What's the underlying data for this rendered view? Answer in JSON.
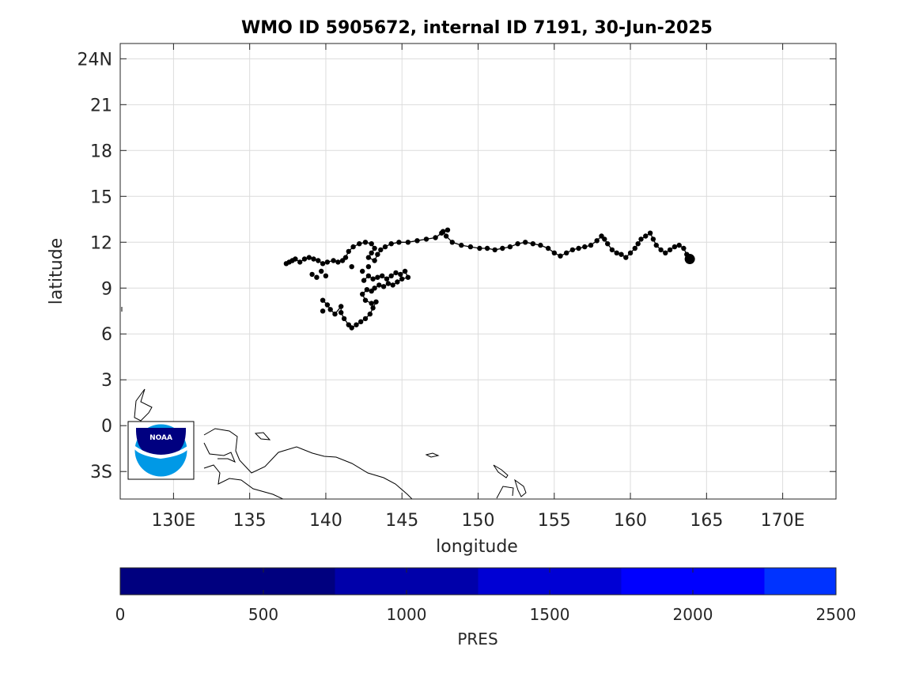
{
  "title": "WMO ID 5905672, internal ID 7191, 30-Jun-2025",
  "map": {
    "xlabel": "longitude",
    "ylabel": "latitude",
    "lon_range": [
      126.5,
      173.5
    ],
    "lat_range": [
      -4.8,
      25
    ],
    "lon_ticks": [
      {
        "value": 130,
        "label": "130E"
      },
      {
        "value": 135,
        "label": "135"
      },
      {
        "value": 140,
        "label": "140"
      },
      {
        "value": 145,
        "label": "145"
      },
      {
        "value": 150,
        "label": "150"
      },
      {
        "value": 155,
        "label": "155"
      },
      {
        "value": 160,
        "label": "160"
      },
      {
        "value": 165,
        "label": "165"
      },
      {
        "value": 170,
        "label": "170E"
      }
    ],
    "lat_ticks": [
      {
        "value": -3,
        "label": "3S"
      },
      {
        "value": 0,
        "label": "0"
      },
      {
        "value": 3,
        "label": "3"
      },
      {
        "value": 6,
        "label": "6"
      },
      {
        "value": 9,
        "label": "9"
      },
      {
        "value": 12,
        "label": "12"
      },
      {
        "value": 15,
        "label": "15"
      },
      {
        "value": 18,
        "label": "18"
      },
      {
        "value": 21,
        "label": "21"
      },
      {
        "value": 24,
        "label": "24N"
      }
    ],
    "grid": true,
    "logo": "noaa-logo",
    "colors": {
      "track": "#000000",
      "grid": "#dcdcdc",
      "coast": "#000000"
    }
  },
  "chart_data": {
    "type": "scatter",
    "track": [
      [
        137.4,
        10.6
      ],
      [
        137.6,
        10.7
      ],
      [
        137.8,
        10.8
      ],
      [
        138.0,
        10.9
      ],
      [
        138.3,
        10.7
      ],
      [
        138.6,
        10.9
      ],
      [
        138.9,
        11.0
      ],
      [
        139.2,
        10.9
      ],
      [
        139.5,
        10.8
      ],
      [
        139.8,
        10.6
      ],
      [
        140.1,
        10.7
      ],
      [
        140.5,
        10.8
      ],
      [
        140.8,
        10.7
      ],
      [
        141.1,
        10.8
      ],
      [
        141.3,
        11.0
      ],
      [
        141.5,
        11.4
      ],
      [
        141.8,
        11.7
      ],
      [
        142.2,
        11.9
      ],
      [
        142.6,
        12.0
      ],
      [
        143.0,
        11.9
      ],
      [
        143.2,
        11.6
      ],
      [
        143.0,
        11.3
      ],
      [
        142.8,
        11.0
      ],
      [
        143.2,
        10.8
      ],
      [
        143.4,
        11.2
      ],
      [
        143.6,
        11.5
      ],
      [
        143.9,
        11.7
      ],
      [
        144.3,
        11.9
      ],
      [
        144.8,
        12.0
      ],
      [
        145.4,
        12.0
      ],
      [
        146.0,
        12.1
      ],
      [
        146.6,
        12.2
      ],
      [
        147.2,
        12.3
      ],
      [
        147.6,
        12.6
      ],
      [
        148.0,
        12.8
      ],
      [
        147.7,
        12.7
      ],
      [
        147.9,
        12.4
      ],
      [
        148.3,
        12.0
      ],
      [
        148.9,
        11.8
      ],
      [
        149.5,
        11.7
      ],
      [
        150.1,
        11.6
      ],
      [
        150.6,
        11.6
      ],
      [
        151.1,
        11.5
      ],
      [
        151.6,
        11.6
      ],
      [
        152.1,
        11.7
      ],
      [
        152.6,
        11.9
      ],
      [
        153.1,
        12.0
      ],
      [
        153.6,
        11.9
      ],
      [
        154.1,
        11.8
      ],
      [
        154.6,
        11.6
      ],
      [
        155.0,
        11.3
      ],
      [
        155.4,
        11.1
      ],
      [
        155.8,
        11.3
      ],
      [
        156.2,
        11.5
      ],
      [
        156.6,
        11.6
      ],
      [
        157.0,
        11.7
      ],
      [
        157.4,
        11.8
      ],
      [
        157.8,
        12.1
      ],
      [
        158.1,
        12.4
      ],
      [
        158.3,
        12.2
      ],
      [
        158.5,
        11.9
      ],
      [
        158.8,
        11.5
      ],
      [
        159.1,
        11.3
      ],
      [
        159.4,
        11.2
      ],
      [
        159.7,
        11.0
      ],
      [
        160.0,
        11.3
      ],
      [
        160.3,
        11.6
      ],
      [
        160.5,
        11.9
      ],
      [
        160.7,
        12.2
      ],
      [
        161.0,
        12.4
      ],
      [
        161.3,
        12.6
      ],
      [
        161.5,
        12.2
      ],
      [
        161.7,
        11.8
      ],
      [
        162.0,
        11.5
      ],
      [
        162.3,
        11.3
      ],
      [
        162.6,
        11.5
      ],
      [
        162.9,
        11.7
      ],
      [
        163.2,
        11.8
      ],
      [
        163.5,
        11.6
      ],
      [
        163.7,
        11.2
      ],
      [
        163.9,
        10.9
      ],
      [
        142.5,
        9.5
      ],
      [
        142.8,
        9.8
      ],
      [
        143.1,
        9.6
      ],
      [
        143.4,
        9.7
      ],
      [
        143.7,
        9.8
      ],
      [
        144.0,
        9.6
      ],
      [
        144.3,
        9.8
      ],
      [
        144.6,
        10.0
      ],
      [
        144.9,
        9.9
      ],
      [
        145.2,
        10.1
      ],
      [
        145.4,
        9.7
      ],
      [
        145.0,
        9.6
      ],
      [
        144.7,
        9.4
      ],
      [
        144.4,
        9.2
      ],
      [
        144.1,
        9.3
      ],
      [
        143.8,
        9.1
      ],
      [
        143.5,
        9.2
      ],
      [
        143.2,
        9.0
      ],
      [
        143.0,
        8.8
      ],
      [
        142.7,
        8.9
      ],
      [
        142.4,
        8.6
      ],
      [
        142.6,
        8.2
      ],
      [
        143.0,
        8.0
      ],
      [
        143.3,
        8.1
      ],
      [
        143.1,
        7.7
      ],
      [
        142.9,
        7.3
      ],
      [
        142.6,
        7.0
      ],
      [
        142.3,
        6.8
      ],
      [
        142.0,
        6.6
      ],
      [
        141.7,
        6.4
      ],
      [
        141.5,
        6.6
      ],
      [
        141.2,
        7.0
      ],
      [
        141.0,
        7.4
      ],
      [
        141.0,
        7.8
      ],
      [
        140.6,
        7.3
      ],
      [
        140.3,
        7.6
      ],
      [
        140.1,
        7.9
      ],
      [
        139.8,
        8.2
      ],
      [
        140.0,
        9.8
      ],
      [
        139.7,
        10.1
      ],
      [
        139.4,
        9.7
      ],
      [
        139.1,
        9.9
      ],
      [
        139.8,
        7.5
      ],
      [
        141.7,
        10.4
      ],
      [
        142.4,
        10.1
      ],
      [
        142.8,
        10.4
      ]
    ],
    "last_position": [
      163.9,
      10.9
    ],
    "colorbar": {
      "label": "PRES",
      "range": [
        0,
        2500
      ],
      "ticks": [
        0,
        500,
        1000,
        1500,
        2000,
        2500
      ],
      "bands": [
        {
          "from": 0,
          "to": 750,
          "color": "#00007f"
        },
        {
          "from": 750,
          "to": 1250,
          "color": "#0000aa"
        },
        {
          "from": 1250,
          "to": 1750,
          "color": "#0000d4"
        },
        {
          "from": 1750,
          "to": 2250,
          "color": "#0000ff"
        },
        {
          "from": 2250,
          "to": 2500,
          "color": "#0033ff"
        }
      ]
    }
  }
}
